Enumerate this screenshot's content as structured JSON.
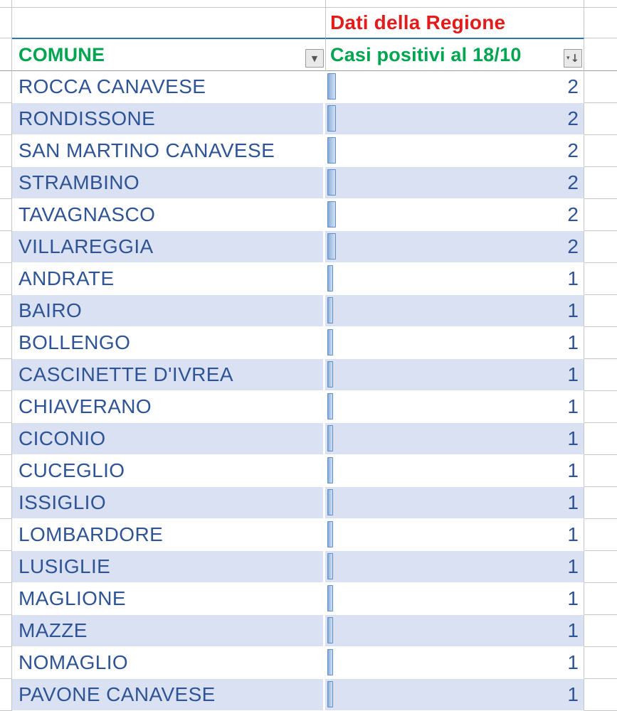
{
  "sheet": {
    "region_header": "Dati della Regione",
    "comune_header": "COMUNE",
    "cases_header": "Casi positivi al 18/10",
    "icons": {
      "dropdown_glyph": "▼",
      "sort_triangle_glyph": "▾",
      "sort_arrow_glyph": "↓"
    },
    "rows": [
      {
        "comune": "ROCCA CANAVESE",
        "casi": "2"
      },
      {
        "comune": "RONDISSONE",
        "casi": "2"
      },
      {
        "comune": "SAN MARTINO CANAVESE",
        "casi": "2"
      },
      {
        "comune": "STRAMBINO",
        "casi": "2"
      },
      {
        "comune": "TAVAGNASCO",
        "casi": "2"
      },
      {
        "comune": "VILLAREGGIA",
        "casi": "2"
      },
      {
        "comune": "ANDRATE",
        "casi": "1"
      },
      {
        "comune": "BAIRO",
        "casi": "1"
      },
      {
        "comune": "BOLLENGO",
        "casi": "1"
      },
      {
        "comune": "CASCINETTE D'IVREA",
        "casi": "1"
      },
      {
        "comune": "CHIAVERANO",
        "casi": "1"
      },
      {
        "comune": "CICONIO",
        "casi": "1"
      },
      {
        "comune": "CUCEGLIO",
        "casi": "1"
      },
      {
        "comune": "ISSIGLIO",
        "casi": "1"
      },
      {
        "comune": "LOMBARDORE",
        "casi": "1"
      },
      {
        "comune": "LUSIGLIE",
        "casi": "1"
      },
      {
        "comune": "MAGLIONE",
        "casi": "1"
      },
      {
        "comune": "MAZZE",
        "casi": "1"
      },
      {
        "comune": "NOMAGLIO",
        "casi": "1"
      },
      {
        "comune": "PAVONE CANAVESE",
        "casi": "1"
      }
    ],
    "colors": {
      "header_green": "#00A550",
      "region_red": "#E21B1B",
      "text_blue": "#2F5496",
      "band_blue": "#D9E1F2",
      "bar_border": "#5E8FC9",
      "header_top_border": "#2E75B6",
      "gridline": "#C6C6C6"
    }
  }
}
